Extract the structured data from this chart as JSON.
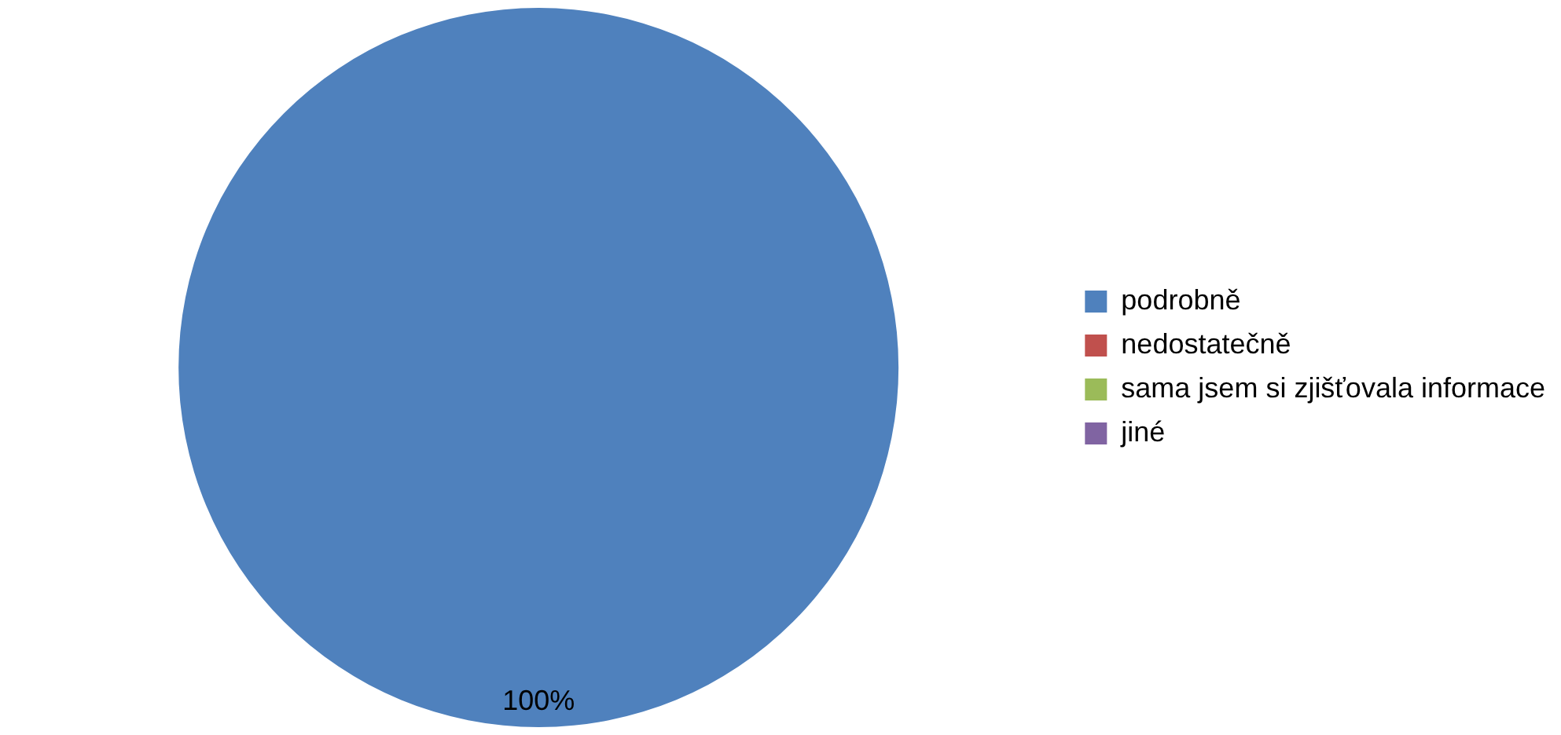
{
  "chart_data": {
    "type": "pie",
    "categories": [
      "podrobně",
      "nedostatečně",
      "sama jsem si zjišťovala informace",
      "jiné"
    ],
    "values": [
      100,
      0,
      0,
      0
    ],
    "colors": [
      "#4f81bd",
      "#c0504d",
      "#9bbb59",
      "#8064a2"
    ],
    "value_labels": [
      "100%",
      null,
      null,
      null
    ],
    "legend": "right"
  }
}
